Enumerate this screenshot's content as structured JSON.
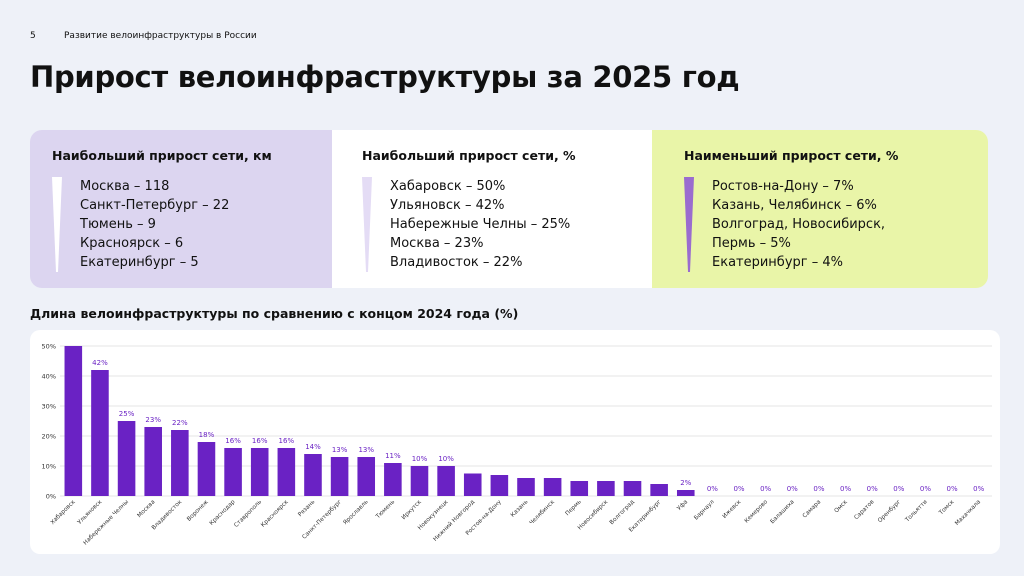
{
  "header": {
    "page_number": "5",
    "section": "Развитие велоинфраструктуры в России",
    "title": "Прирост велоинфраструктуры за 2025 год"
  },
  "cards": [
    {
      "title": "Наибольший прирост сети, км",
      "items": [
        "Москва – 118",
        "Санкт-Петербург – 22",
        "Тюмень – 9",
        "Красноярск – 6",
        "Екатеринбург – 5"
      ]
    },
    {
      "title": "Наибольший прирост сети, %",
      "items": [
        "Хабаровск – 50%",
        "Ульяновск – 42%",
        "Набережные Челны – 25%",
        "Москва – 23%",
        "Владивосток – 22%"
      ]
    },
    {
      "title": "Наименьший прирост сети, %",
      "items": [
        "Ростов-на-Дону – 7%",
        "Казань, Челябинск – 6%",
        "Волгоград, Новосибирск, Пермь – 5%",
        "Екатеринбург – 4%"
      ]
    }
  ],
  "chart_data": {
    "type": "bar",
    "title": "Длина велоинфраструктуры по сравнению с концом 2024 года (%)",
    "categories": [
      "Хабаровск",
      "Ульяновск",
      "Набережные Челны",
      "Москва",
      "Владивосток",
      "Воронеж",
      "Краснодар",
      "Ставрополь",
      "Красноярск",
      "Рязань",
      "Санкт-Петербург",
      "Ярославль",
      "Тюмень",
      "Иркутск",
      "Новокузнецк",
      "Нижний Новгород",
      "Ростов-на-Дону",
      "Казань",
      "Челябинск",
      "Пермь",
      "Новосибирск",
      "Волгоград",
      "Екатеринбург",
      "Уфа",
      "Барнаул",
      "Ижевск",
      "Кемерово",
      "Балашиха",
      "Самара",
      "Омск",
      "Саратов",
      "Оренбург",
      "Тольятти",
      "Томск",
      "Махачкала"
    ],
    "values": [
      50,
      42,
      25,
      23,
      22,
      18,
      16,
      16,
      16,
      14,
      13,
      13,
      11,
      10,
      10,
      7.5,
      7,
      6,
      6,
      5,
      5,
      5,
      4,
      2,
      0,
      0,
      0,
      0,
      0,
      0,
      0,
      0,
      0,
      0,
      0
    ],
    "value_labels": [
      null,
      "42%",
      "25%",
      "23%",
      "22%",
      "18%",
      "16%",
      "16%",
      "16%",
      "14%",
      "13%",
      "13%",
      "11%",
      "10%",
      "10%",
      null,
      null,
      null,
      null,
      null,
      null,
      null,
      null,
      "2%",
      "0%",
      "0%",
      "0%",
      "0%",
      "0%",
      "0%",
      "0%",
      "0%",
      "0%",
      "0%",
      "0%"
    ],
    "color": "#6a22c4",
    "label_color": "#6a22c4",
    "ylim": [
      0,
      50
    ],
    "yticks": [
      {
        "value": 0,
        "label": "0%"
      },
      {
        "value": 10,
        "label": "10%"
      },
      {
        "value": 20,
        "label": "20%"
      },
      {
        "value": 30,
        "label": "30%"
      },
      {
        "value": 40,
        "label": "40%"
      },
      {
        "value": 50,
        "label": "50%"
      }
    ],
    "grid": true
  }
}
